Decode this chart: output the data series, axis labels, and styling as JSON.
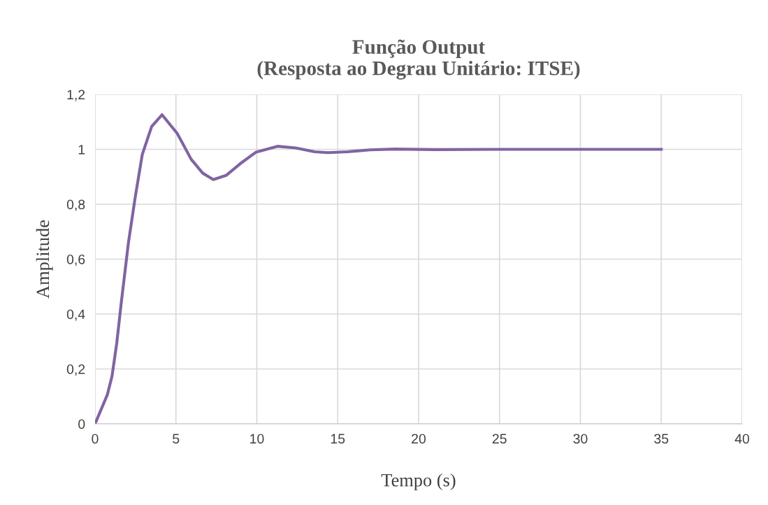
{
  "chart_data": {
    "type": "line",
    "title": "Função Output\n(Resposta ao Degrau Unitário: ITSE)",
    "xlabel": "Tempo (s)",
    "ylabel": "Amplitude",
    "series": [
      {
        "color": "#8064a2",
        "x": [
          0,
          0.76,
          1.05,
          1.34,
          1.63,
          2.06,
          2.49,
          2.92,
          3.5,
          4.14,
          5.08,
          5.94,
          6.66,
          7.31,
          8.1,
          8.96,
          9.96,
          11.27,
          12.4,
          13.57,
          14.4,
          15.6,
          17.0,
          18.5,
          21,
          25,
          30,
          35
        ],
        "values": [
          0,
          0.106,
          0.174,
          0.293,
          0.446,
          0.658,
          0.828,
          0.981,
          1.083,
          1.126,
          1.058,
          0.964,
          0.913,
          0.89,
          0.905,
          0.947,
          0.99,
          1.011,
          1.005,
          0.991,
          0.988,
          0.991,
          0.998,
          1.001,
          0.999,
          1.0,
          1.0,
          1.0
        ]
      }
    ],
    "xlim": [
      0,
      40
    ],
    "xticks": [
      0,
      5,
      10,
      15,
      20,
      25,
      30,
      35,
      40
    ],
    "ylim": [
      0,
      1.2
    ],
    "yticks": [
      {
        "value": 0,
        "label": "0"
      },
      {
        "value": 0.2,
        "label": "0,2"
      },
      {
        "value": 0.4,
        "label": "0,4"
      },
      {
        "value": 0.6,
        "label": "0,6"
      },
      {
        "value": 0.8,
        "label": "0,8"
      },
      {
        "value": 1,
        "label": "1"
      },
      {
        "value": 1.2,
        "label": "1,2"
      }
    ],
    "grid": true,
    "marker": "none",
    "line_style": "solid",
    "legend": false
  }
}
